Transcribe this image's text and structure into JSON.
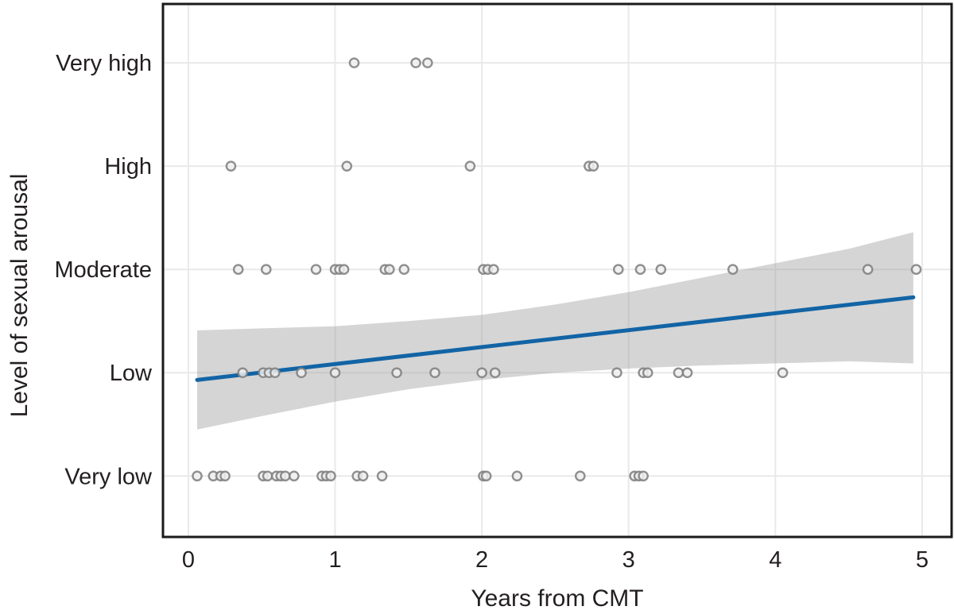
{
  "chart_data": {
    "type": "scatter",
    "title": "",
    "xlabel": "Years from CMT",
    "ylabel": "Level of sexual arousal",
    "x_ticks": [
      "0",
      "1",
      "2",
      "3",
      "4",
      "5"
    ],
    "x_tick_values": [
      0,
      1,
      2,
      3,
      4,
      5
    ],
    "y_categories": [
      "Very low",
      "Low",
      "Moderate",
      "High",
      "Very high"
    ],
    "y_category_values": [
      1,
      2,
      3,
      4,
      5
    ],
    "xlim": [
      -0.173,
      5.201
    ],
    "ylim": [
      0.41,
      5.57
    ],
    "grid": "major-only",
    "legend": "none",
    "series": [
      {
        "name": "Very high",
        "y": 5,
        "x": [
          1.13,
          1.55,
          1.63
        ]
      },
      {
        "name": "High",
        "y": 4,
        "x": [
          0.29,
          1.08,
          1.92,
          2.73,
          2.76
        ]
      },
      {
        "name": "Moderate",
        "y": 3,
        "x": [
          0.34,
          0.53,
          0.87,
          1.0,
          1.03,
          1.06,
          1.34,
          1.37,
          1.47,
          2.01,
          2.04,
          2.08,
          2.93,
          3.08,
          3.22,
          3.71,
          4.63,
          4.96
        ]
      },
      {
        "name": "Low",
        "y": 2,
        "x": [
          0.37,
          0.51,
          0.55,
          0.59,
          0.77,
          1.0,
          1.42,
          1.68,
          2.0,
          2.09,
          2.92,
          3.1,
          3.13,
          3.34,
          3.4,
          4.05
        ]
      },
      {
        "name": "Very low",
        "y": 1,
        "x": [
          0.06,
          0.17,
          0.22,
          0.25,
          0.51,
          0.54,
          0.6,
          0.63,
          0.66,
          0.72,
          0.91,
          0.94,
          0.97,
          1.15,
          1.19,
          1.32,
          2.01,
          2.03,
          2.24,
          2.67,
          3.04,
          3.07,
          3.1
        ]
      }
    ],
    "trend_line": {
      "x1": 0.06,
      "y1": 1.93,
      "x2": 4.94,
      "y2": 2.73
    },
    "ci_band": {
      "x": [
        0.06,
        0.5,
        1.0,
        1.5,
        2.0,
        2.5,
        3.0,
        3.5,
        4.0,
        4.5,
        4.94
      ],
      "upper": [
        2.41,
        2.43,
        2.45,
        2.5,
        2.56,
        2.66,
        2.78,
        2.92,
        3.06,
        3.2,
        3.36
      ],
      "lower": [
        1.45,
        1.58,
        1.72,
        1.84,
        1.93,
        2.0,
        2.04,
        2.07,
        2.09,
        2.11,
        2.09
      ]
    },
    "colors": {
      "trend_line": "#1264a5",
      "ci_band": "rgba(150,150,150,0.40)",
      "point_stroke": "rgba(125,125,125,0.85)",
      "point_fill": "rgba(238,238,238,0.85)",
      "gridline": "#e9e9e9",
      "panel_border": "#1a1a1a",
      "text": "#231f20",
      "background": "#ffffff"
    }
  }
}
